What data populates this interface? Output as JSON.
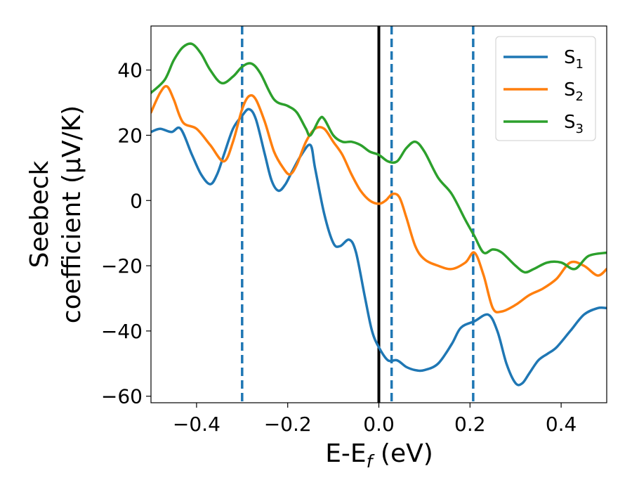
{
  "chart_data": {
    "type": "line",
    "title": "",
    "xlabel": {
      "main": "E-E",
      "sub": "f",
      "unit": " (eV)"
    },
    "ylabel": {
      "line1": "Seebeck",
      "line2": "coefficient  (μV/K)"
    },
    "xlim": [
      -0.5,
      0.5
    ],
    "ylim": [
      -62,
      53.5
    ],
    "xticks": [
      -0.4,
      -0.2,
      0.0,
      0.2,
      0.4
    ],
    "xtick_labels": [
      "−0.4",
      "−0.2",
      "0.0",
      "0.2",
      "0.4"
    ],
    "yticks": [
      -60,
      -40,
      -20,
      0,
      20,
      40
    ],
    "ytick_labels": [
      "−60",
      "−40",
      "−20",
      "0",
      "20",
      "40"
    ],
    "grid": false,
    "legend_position": "top-right",
    "reference_lines": {
      "solid_vertical": {
        "x": 0.0,
        "color": "#000000"
      },
      "dashed_vertical": {
        "x": [
          -0.3,
          0.028,
          0.207
        ],
        "color": "#1f77b4"
      }
    },
    "series": [
      {
        "name": "S",
        "subscript": "1",
        "color": "#1f77b4",
        "x": [
          -0.5,
          -0.48,
          -0.455,
          -0.435,
          -0.41,
          -0.39,
          -0.37,
          -0.355,
          -0.34,
          -0.32,
          -0.3,
          -0.285,
          -0.27,
          -0.25,
          -0.235,
          -0.22,
          -0.205,
          -0.19,
          -0.17,
          -0.15,
          -0.14,
          -0.12,
          -0.1,
          -0.085,
          -0.065,
          -0.05,
          -0.03,
          -0.015,
          0.0,
          0.02,
          0.04,
          0.06,
          0.08,
          0.1,
          0.13,
          0.16,
          0.18,
          0.21,
          0.24,
          0.26,
          0.28,
          0.3,
          0.315,
          0.33,
          0.35,
          0.37,
          0.39,
          0.42,
          0.45,
          0.48,
          0.5
        ],
        "y": [
          21,
          22,
          21,
          22,
          14,
          8,
          5,
          8,
          14,
          22,
          26,
          28,
          25,
          14,
          6,
          3,
          5,
          9,
          14,
          17,
          10,
          -4,
          -13,
          -14,
          -12,
          -16,
          -30,
          -40,
          -45,
          -49,
          -49,
          -51,
          -52,
          -52,
          -50,
          -44,
          -39,
          -37,
          -35,
          -40,
          -50,
          -56,
          -56,
          -53,
          -49,
          -47,
          -45,
          -40,
          -35,
          -33,
          -33
        ]
      },
      {
        "name": "S",
        "subscript": "2",
        "color": "#ff7f0e",
        "x": [
          -0.5,
          -0.48,
          -0.465,
          -0.45,
          -0.43,
          -0.4,
          -0.37,
          -0.34,
          -0.32,
          -0.3,
          -0.285,
          -0.27,
          -0.25,
          -0.23,
          -0.21,
          -0.195,
          -0.18,
          -0.16,
          -0.14,
          -0.12,
          -0.1,
          -0.08,
          -0.06,
          -0.04,
          -0.02,
          0.0,
          0.015,
          0.03,
          0.045,
          0.06,
          0.08,
          0.1,
          0.13,
          0.16,
          0.19,
          0.21,
          0.23,
          0.25,
          0.27,
          0.3,
          0.33,
          0.36,
          0.39,
          0.42,
          0.45,
          0.48,
          0.5
        ],
        "y": [
          27,
          33,
          35,
          31,
          24,
          22,
          17,
          12,
          18,
          28,
          32,
          31,
          24,
          15,
          10,
          8,
          11,
          18,
          22,
          22,
          18,
          14,
          8,
          3,
          0,
          -1,
          0,
          2,
          1,
          -5,
          -14,
          -18,
          -20,
          -21,
          -19,
          -16,
          -23,
          -33,
          -34,
          -32,
          -29,
          -27,
          -24,
          -19,
          -20,
          -23,
          -21
        ]
      },
      {
        "name": "S",
        "subscript": "3",
        "color": "#2ca02c",
        "x": [
          -0.5,
          -0.47,
          -0.45,
          -0.43,
          -0.41,
          -0.39,
          -0.37,
          -0.345,
          -0.32,
          -0.3,
          -0.28,
          -0.26,
          -0.23,
          -0.2,
          -0.18,
          -0.16,
          -0.15,
          -0.13,
          -0.12,
          -0.1,
          -0.08,
          -0.06,
          -0.04,
          -0.02,
          0.0,
          0.02,
          0.04,
          0.06,
          0.08,
          0.1,
          0.13,
          0.16,
          0.19,
          0.21,
          0.23,
          0.25,
          0.27,
          0.3,
          0.32,
          0.34,
          0.37,
          0.4,
          0.43,
          0.46,
          0.5
        ],
        "y": [
          33,
          37,
          43,
          47,
          48,
          45,
          40,
          36,
          38,
          41,
          42,
          39,
          31,
          29,
          27,
          22,
          20,
          25,
          25,
          20,
          18,
          18,
          17,
          15,
          14,
          12,
          12,
          16,
          18,
          15,
          7,
          2,
          -6,
          -11,
          -16,
          -15,
          -16,
          -20,
          -22,
          -21,
          -19,
          -19,
          -21,
          -17,
          -16
        ]
      }
    ]
  }
}
